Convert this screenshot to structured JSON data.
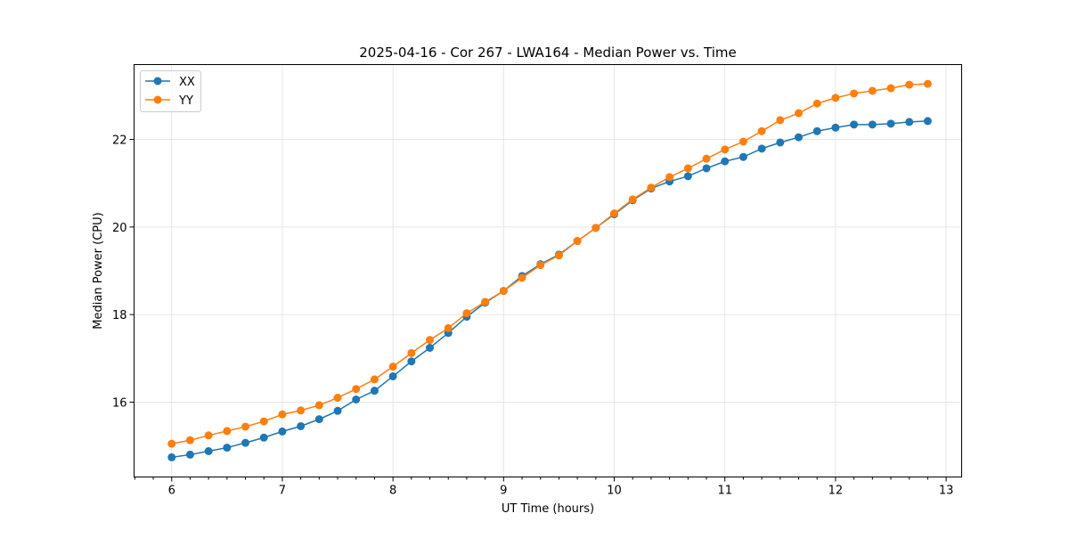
{
  "chart_data": {
    "type": "line",
    "title": "2025-04-16 - Cor 267 - LWA164 - Median Power vs. Time",
    "xlabel": "UT Time (hours)",
    "ylabel": "Median Power (CPU)",
    "xlim": [
      5.66,
      13.14
    ],
    "ylim": [
      14.29,
      23.71
    ],
    "xticks": [
      6,
      7,
      8,
      9,
      10,
      11,
      12,
      13
    ],
    "yticks": [
      16,
      18,
      20,
      22
    ],
    "grid": true,
    "legend_position": "top-left",
    "x_start": 6,
    "x_step_hours": 0.1666667,
    "series": [
      {
        "name": "XX",
        "color": "#1f77b4",
        "values": [
          14.74,
          14.8,
          14.88,
          14.96,
          15.07,
          15.19,
          15.33,
          15.45,
          15.61,
          15.8,
          16.06,
          16.26,
          16.59,
          16.93,
          17.24,
          17.58,
          17.95,
          18.27,
          18.54,
          18.88,
          19.15,
          19.37,
          19.68,
          19.98,
          20.29,
          20.61,
          20.88,
          21.04,
          21.16,
          21.34,
          21.5,
          21.6,
          21.79,
          21.93,
          22.05,
          22.19,
          22.27,
          22.34,
          22.34,
          22.36,
          22.4,
          22.42
        ]
      },
      {
        "name": "YY",
        "color": "#ff7f0e",
        "values": [
          15.05,
          15.13,
          15.24,
          15.34,
          15.44,
          15.56,
          15.72,
          15.81,
          15.93,
          16.1,
          16.3,
          16.52,
          16.81,
          17.12,
          17.42,
          17.69,
          18.03,
          18.29,
          18.54,
          18.84,
          19.13,
          19.35,
          19.68,
          19.98,
          20.31,
          20.63,
          20.9,
          21.14,
          21.34,
          21.56,
          21.77,
          21.95,
          22.19,
          22.44,
          22.6,
          22.82,
          22.95,
          23.05,
          23.11,
          23.17,
          23.25,
          23.27
        ]
      }
    ]
  }
}
